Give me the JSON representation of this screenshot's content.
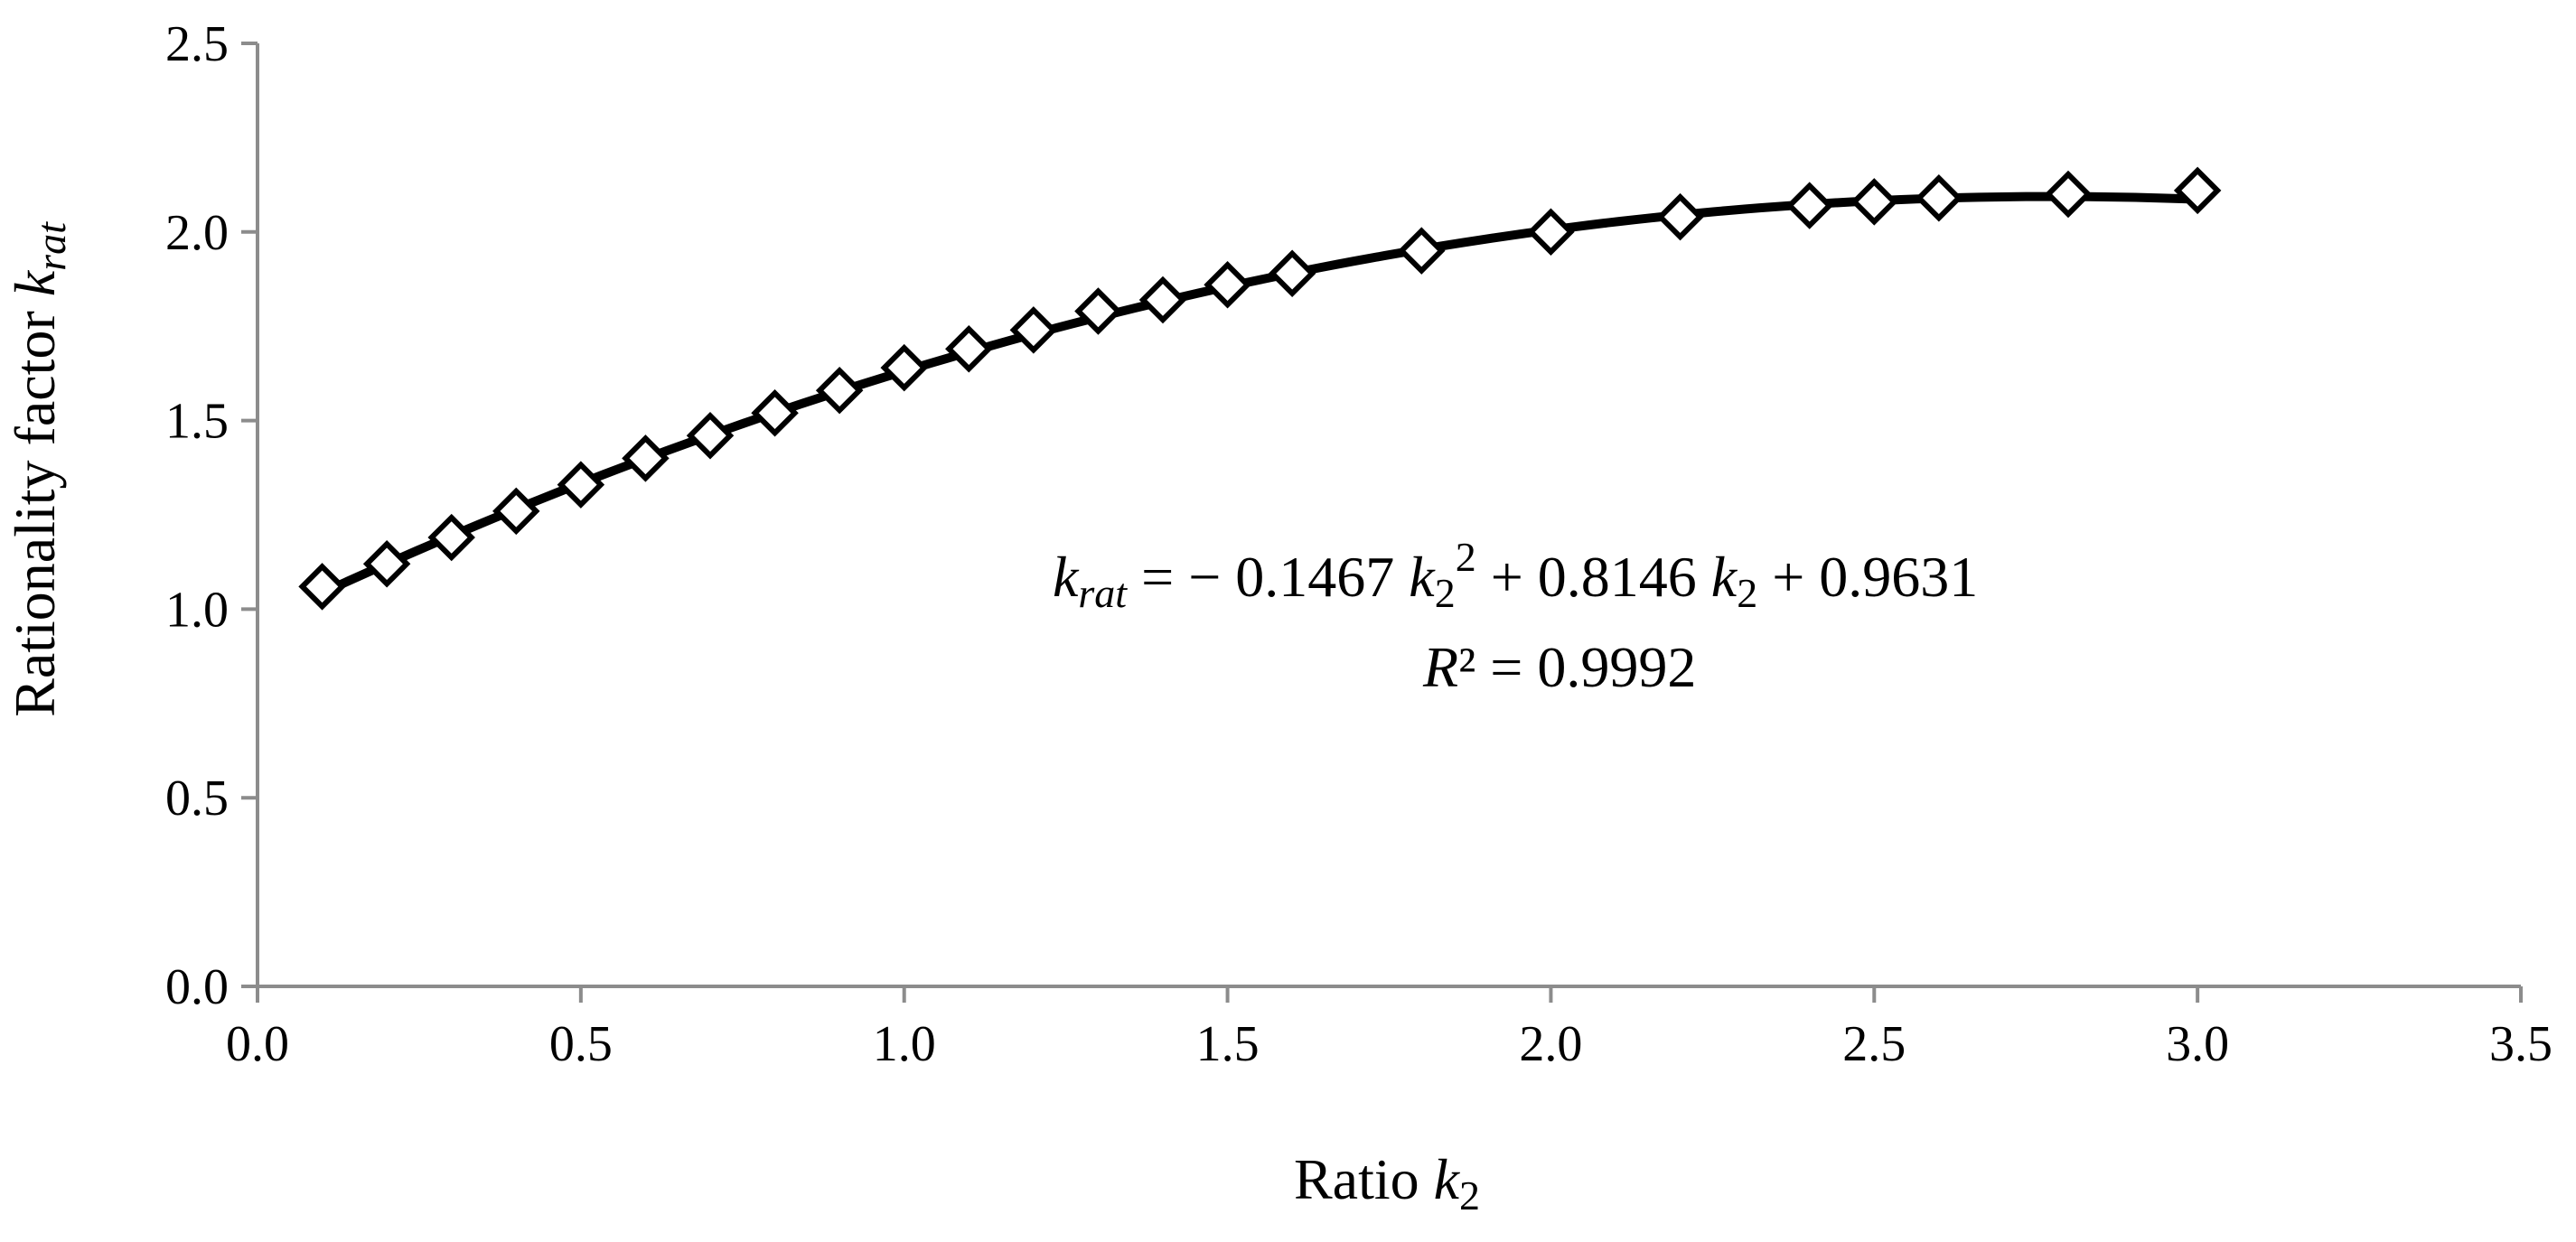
{
  "chart_data": {
    "type": "scatter",
    "xlabel": {
      "main": "Ratio ",
      "var": "k",
      "sub": "2"
    },
    "ylabel": {
      "main": "Rationality factor ",
      "var": "k",
      "sub": "rat"
    },
    "xlim": [
      0,
      3.5
    ],
    "ylim": [
      0,
      2.5
    ],
    "x_ticks": [
      "0.0",
      "0.5",
      "1.0",
      "1.5",
      "2.0",
      "2.5",
      "3.0",
      "3.5"
    ],
    "y_ticks": [
      "0.0",
      "0.5",
      "1.0",
      "1.5",
      "2.0",
      "2.5"
    ],
    "grid": false,
    "marker": "diamond-open",
    "colors": {
      "marker": "#000000",
      "trendline": "#000000",
      "axis": "#8c8c8c"
    },
    "points": [
      {
        "x": 0.1,
        "y": 1.06
      },
      {
        "x": 0.2,
        "y": 1.12
      },
      {
        "x": 0.3,
        "y": 1.19
      },
      {
        "x": 0.4,
        "y": 1.26
      },
      {
        "x": 0.5,
        "y": 1.33
      },
      {
        "x": 0.6,
        "y": 1.4
      },
      {
        "x": 0.7,
        "y": 1.46
      },
      {
        "x": 0.8,
        "y": 1.52
      },
      {
        "x": 0.9,
        "y": 1.58
      },
      {
        "x": 1.0,
        "y": 1.64
      },
      {
        "x": 1.1,
        "y": 1.69
      },
      {
        "x": 1.2,
        "y": 1.74
      },
      {
        "x": 1.3,
        "y": 1.79
      },
      {
        "x": 1.4,
        "y": 1.82
      },
      {
        "x": 1.5,
        "y": 1.86
      },
      {
        "x": 1.6,
        "y": 1.89
      },
      {
        "x": 1.8,
        "y": 1.95
      },
      {
        "x": 2.0,
        "y": 2.0
      },
      {
        "x": 2.2,
        "y": 2.04
      },
      {
        "x": 2.4,
        "y": 2.07
      },
      {
        "x": 2.5,
        "y": 2.08
      },
      {
        "x": 2.6,
        "y": 2.09
      },
      {
        "x": 2.8,
        "y": 2.1
      },
      {
        "x": 3.0,
        "y": 2.11
      }
    ],
    "trendline": {
      "type": "polynomial",
      "coefficients": {
        "a": -0.1467,
        "b": 0.8146,
        "c": 0.9631
      },
      "x_range": [
        0.1,
        3.0
      ]
    },
    "annotation": {
      "equation": {
        "lhs_var": "k",
        "lhs_sub": "rat",
        "eq1": " = − 0.1467 ",
        "t1_var": "k",
        "t1_sub": "2",
        "t1_sup": "2",
        "mid": " + 0.8146 ",
        "t2_var": "k",
        "t2_sub": "2",
        "tail": " + 0.9631"
      },
      "r2": {
        "var": "R",
        "rest": "² = 0.9992"
      }
    }
  }
}
